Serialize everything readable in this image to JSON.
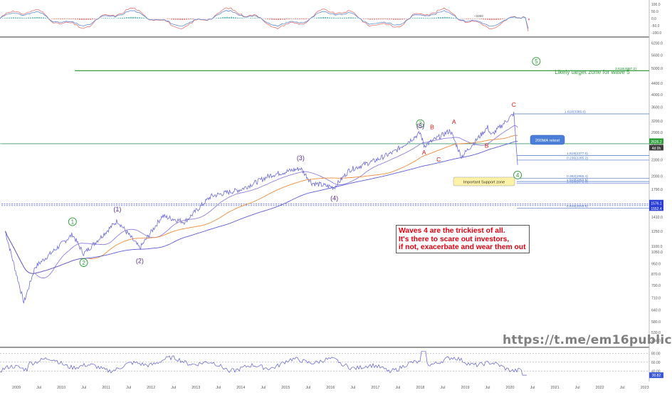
{
  "watermark": "https://t.me/em16public",
  "note_lines": [
    "Waves 4 are the trickiest of all.",
    "It's there to scare out investors,",
    "if not, exacerbate and wear them out"
  ],
  "target_label": "Likely target zone for wave 5",
  "support_label": "Important Support zone",
  "ma_label": "200MA retest",
  "colors": {
    "price": "#6b6bdc",
    "ma_orange": "#f08a3a",
    "ma_purple": "#8f7fe0",
    "wave_green": "#2e9e3a",
    "wave_purple": "#5a2d91",
    "abc_red": "#e01010",
    "hline_green": "#1f8f2a",
    "hline_blue": "#2b3fd6"
  },
  "chart_data": {
    "type": "line",
    "title": "",
    "price_axis": {
      "scale": "log",
      "ticks": [
        "6200.0",
        "5600.0",
        "5000.0",
        "4400.0",
        "4000.0",
        "3600.0",
        "3200.0",
        "2900.0",
        "2600.0",
        "2300.0",
        "2000.0",
        "1790.0",
        "1590.0",
        "1410.0",
        "1250.0",
        "1100.0",
        "1050.0",
        "950.0",
        "870.0",
        "790.0",
        "710.0",
        "640.0",
        "580.0",
        "530.0",
        "494.0"
      ]
    },
    "x_ticks": [
      "2009",
      "Jul",
      "2010",
      "Jul",
      "2011",
      "Jul",
      "2012",
      "Jul",
      "2013",
      "Jul",
      "2014",
      "Jul",
      "2015",
      "Jul",
      "2016",
      "Jul",
      "2017",
      "Jul",
      "2018",
      "Jul",
      "2019",
      "Jul",
      "2020",
      "Jul",
      "2021",
      "Jul",
      "2022",
      "Jul",
      "2023"
    ],
    "series": [
      {
        "name": "",
        "dates": [
          "2008-10",
          "2009-03",
          "2009-06",
          "2010-04",
          "2010-07",
          "2011-04",
          "2011-10",
          "2012-04",
          "2012-10",
          "2013-05",
          "2014-01",
          "2014-09",
          "2015-05",
          "2015-08",
          "2016-02",
          "2016-06",
          "2017-01",
          "2017-06",
          "2018-01",
          "2018-02",
          "2018-09",
          "2018-12",
          "2019-07",
          "2019-08",
          "2020-02",
          "2020-03"
        ],
        "values": [
          1250,
          680,
          920,
          1215,
          1030,
          1365,
          1080,
          1420,
          1350,
          1680,
          1780,
          2010,
          2130,
          1880,
          1810,
          2100,
          2280,
          2450,
          2880,
          2580,
          2940,
          2350,
          3020,
          2820,
          3390,
          2190
        ]
      }
    ],
    "waves": [
      {
        "label": "1",
        "style": "circle",
        "date": "2010-04",
        "price": 1250
      },
      {
        "label": "2",
        "style": "circle",
        "date": "2010-07",
        "price": 1040
      },
      {
        "label": "(1)",
        "style": "paren",
        "date": "2011-04",
        "price": 1390
      },
      {
        "label": "(2)",
        "style": "paren",
        "date": "2011-10",
        "price": 1050
      },
      {
        "label": "(3)",
        "style": "paren",
        "date": "2015-05",
        "price": 2150
      },
      {
        "label": "(4)",
        "style": "paren",
        "date": "2016-02",
        "price": 1790
      },
      {
        "label": "3",
        "style": "circle",
        "date": "2018-01",
        "price": 2880
      },
      {
        "label": "(5)",
        "style": "paren",
        "date": "2018-01",
        "price": 2820
      },
      {
        "label": "4",
        "style": "circle",
        "date": "2020-03",
        "price": 2190
      },
      {
        "label": "5",
        "style": "circle",
        "date": "2020-08",
        "price": 4890
      }
    ],
    "abc": [
      {
        "label": "A",
        "date": "2018-02",
        "price": 2580
      },
      {
        "label": "B",
        "date": "2018-03",
        "price": 2800
      },
      {
        "label": "C",
        "date": "2018-04",
        "price": 2580
      },
      {
        "label": "A",
        "date": "2018-10",
        "price": 2930
      },
      {
        "label": "B",
        "date": "2019-06",
        "price": 2730
      },
      {
        "label": "C",
        "date": "2020-02",
        "price": 3390
      }
    ],
    "levels": [
      {
        "label": "2.618(4887.2)",
        "value": 4887.2,
        "color": "#1f8f2a"
      },
      {
        "label": "1.618(3385.0)",
        "value": 3385.0
      },
      {
        "label": "2626.2",
        "value": 2626.2
      },
      {
        "label": "1.618(2377.0)",
        "value": 2377.0
      },
      {
        "label": "0.236(2285.2)",
        "value": 2285.2
      },
      {
        "label": "0.382(1955.4)",
        "value": 1955.4
      },
      {
        "label": "2.618(1903.6)",
        "value": 1903.6
      },
      {
        "label": "1.618(1872.9)",
        "value": 1872.9
      },
      {
        "label": "1576.1",
        "value": 1576.1,
        "color": "#2b3fd6"
      },
      {
        "label": "1552.4",
        "value": 1552.4,
        "color": "#2b3fd6"
      },
      {
        "label": "0.618(1519.9)",
        "value": 1519.9
      }
    ],
    "price_badges": [
      "2626.2",
      "4d 0h",
      "1576.1",
      "1552.4"
    ],
    "top_panel": {
      "ticks": [
        "100.0",
        "50.0",
        "0.0",
        "-50.0",
        "-100.0"
      ],
      "value_label": "~3383"
    },
    "bottom_panel": {
      "ticks": [
        "80.00",
        "60.00",
        "40.00",
        "30.82"
      ],
      "value": 30.82
    }
  }
}
